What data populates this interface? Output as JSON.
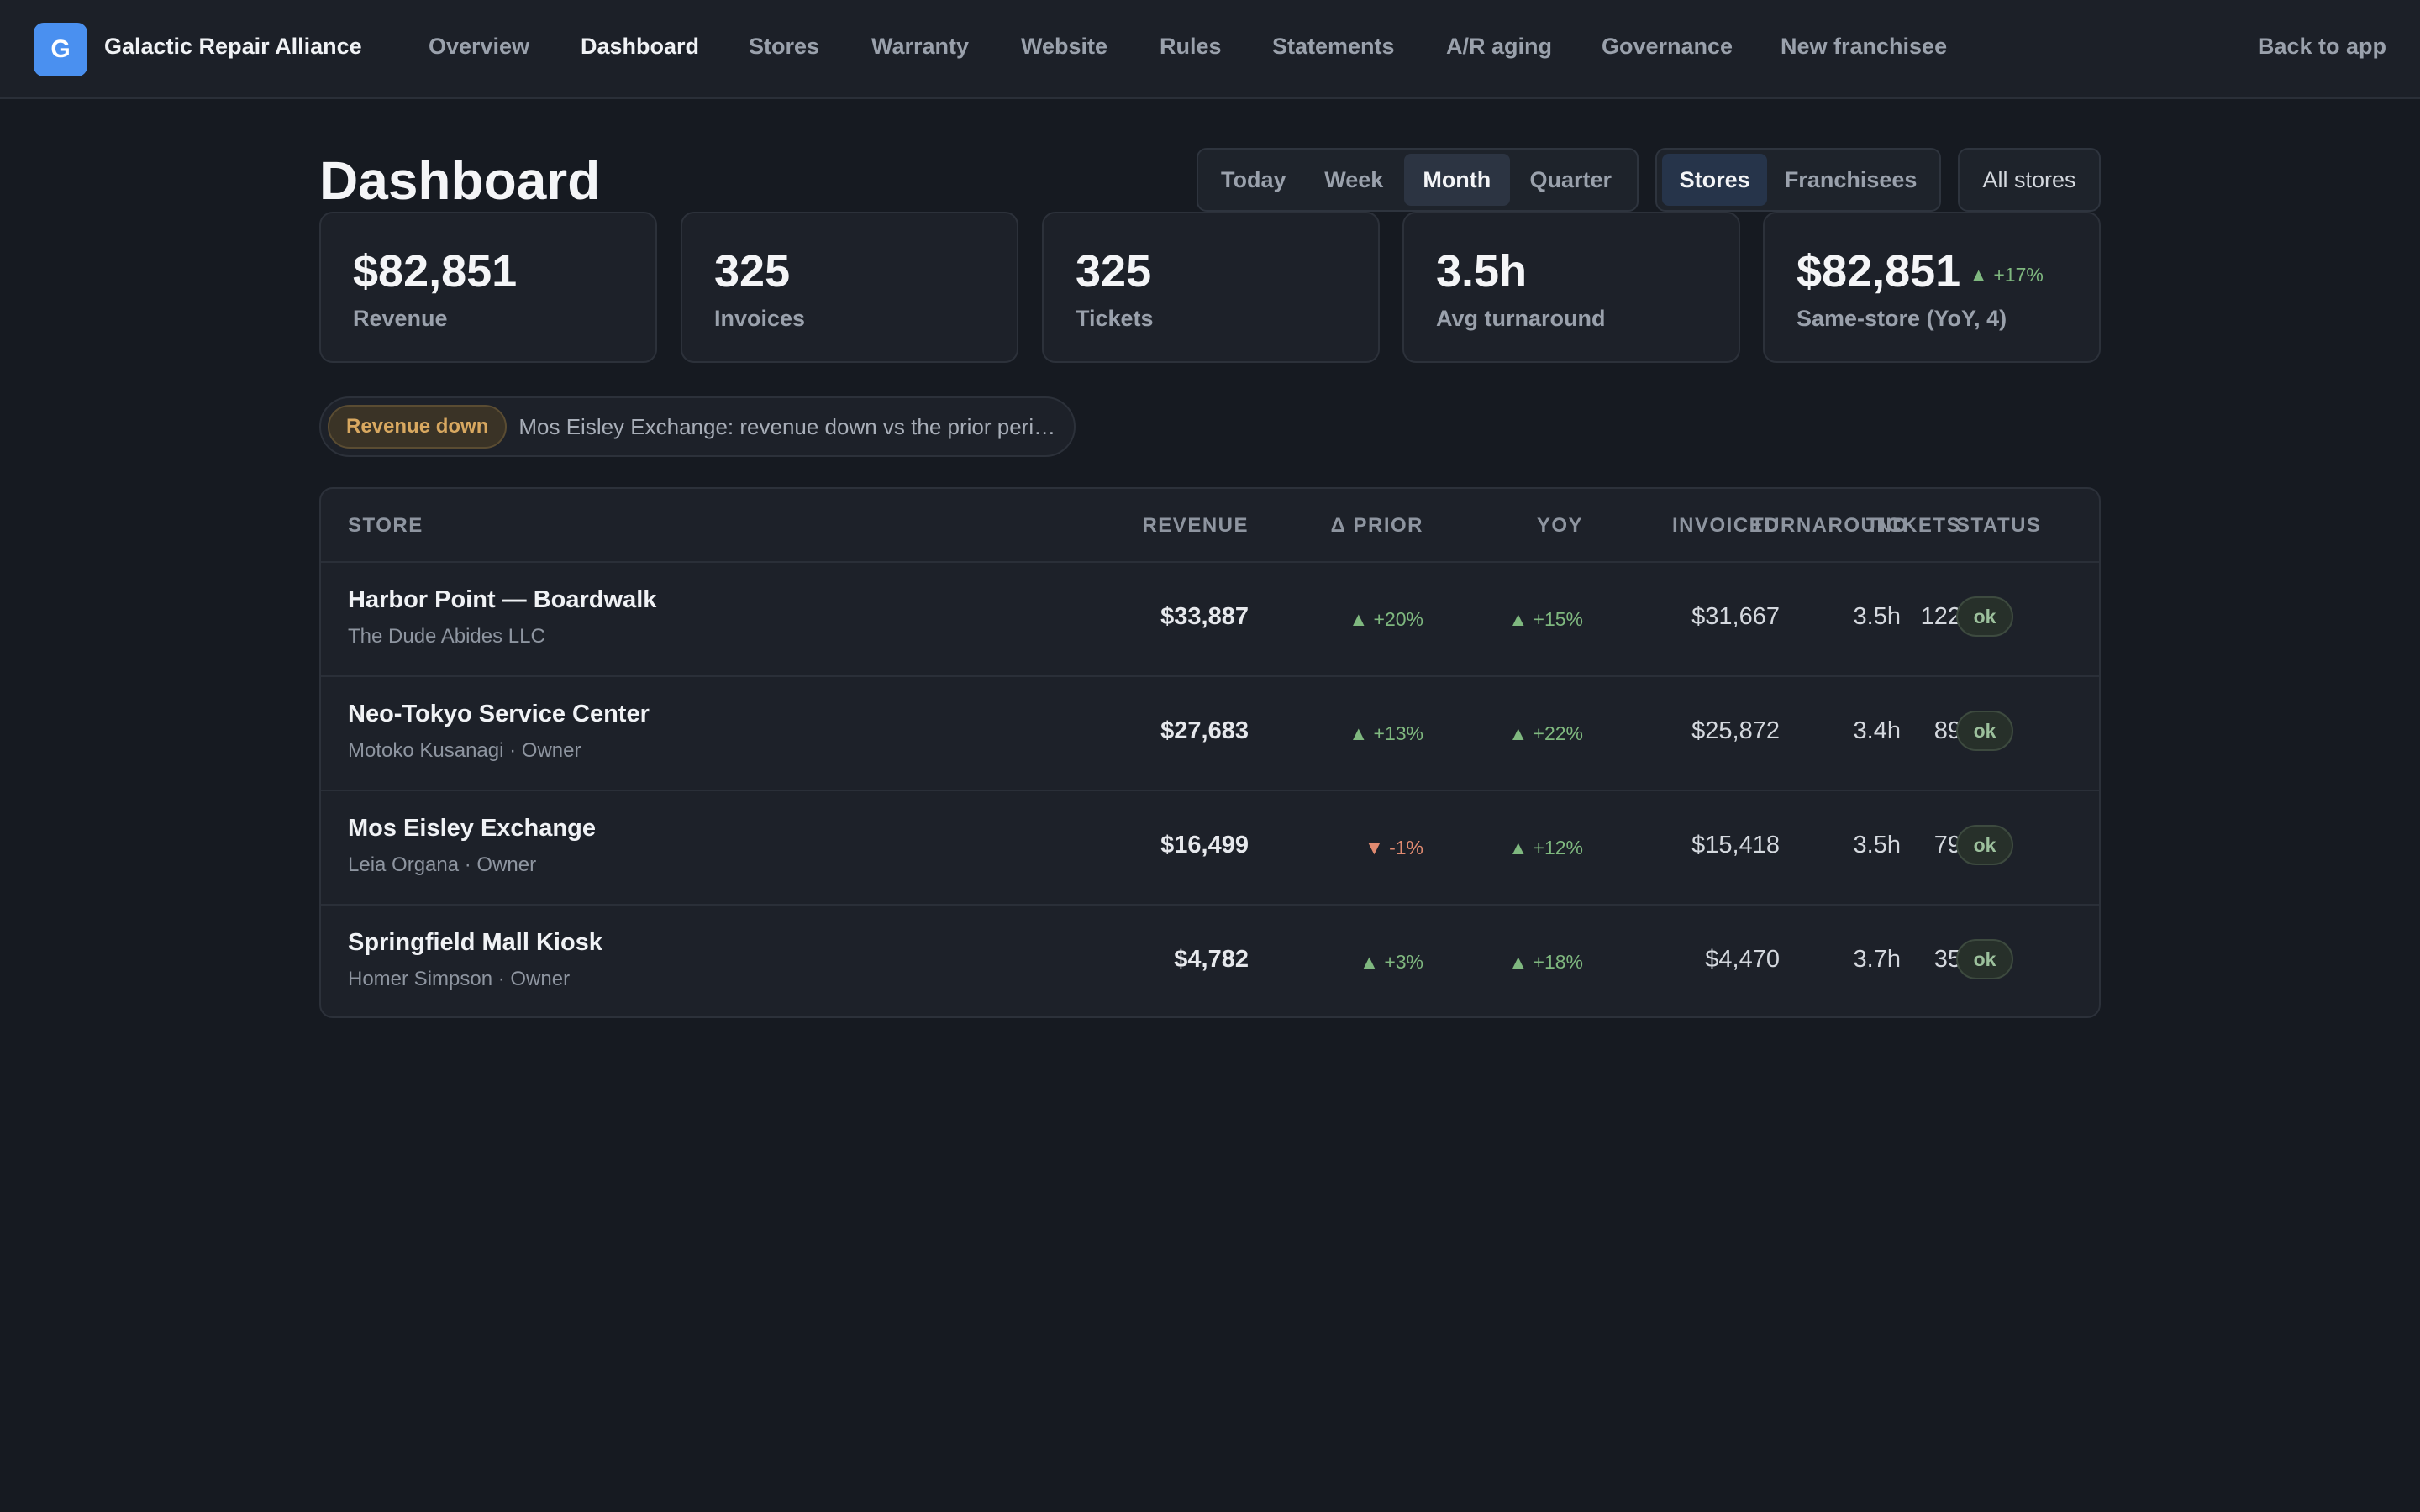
{
  "app": {
    "logo_letter": "G",
    "name": "Galactic Repair Alliance"
  },
  "nav": {
    "items": [
      "Overview",
      "Dashboard",
      "Stores",
      "Warranty",
      "Website",
      "Rules",
      "Statements",
      "A/R aging",
      "Governance",
      "New franchisee"
    ],
    "active": "Dashboard",
    "back_label": "Back to app"
  },
  "page": {
    "title": "Dashboard"
  },
  "period": {
    "options": [
      "Today",
      "Week",
      "Month",
      "Quarter"
    ],
    "selected": "Month"
  },
  "view": {
    "options": [
      "Stores",
      "Franchisees"
    ],
    "selected": "Stores"
  },
  "filter": {
    "stores_label": "All stores"
  },
  "kpis": [
    {
      "value": "$82,851",
      "label": "Revenue"
    },
    {
      "value": "325",
      "label": "Invoices"
    },
    {
      "value": "325",
      "label": "Tickets"
    },
    {
      "value": "3.5h",
      "label": "Avg turnaround"
    },
    {
      "value": "$82,851",
      "label": "Same-store (YoY, 4)",
      "delta": "▲ +17%"
    }
  ],
  "alert": {
    "badge": "Revenue down",
    "text": "Mos Eisley Exchange: revenue down vs the prior period"
  },
  "table": {
    "headers": [
      "STORE",
      "REVENUE",
      "Δ PRIOR",
      "YOY",
      "INVOICED",
      "TICKETS",
      "TURNAROUND",
      "STATUS"
    ],
    "rows": [
      {
        "store": "Harbor Point — Boardwalk",
        "owner": "The Dude Abides LLC",
        "revenue": "$33,887",
        "prior": "▲ +20%",
        "prior_dir": "up",
        "yoy": "▲ +15%",
        "yoy_dir": "up",
        "invoiced": "$31,667",
        "tickets": "122",
        "turnaround": "3.5h",
        "status": "ok"
      },
      {
        "store": "Neo-Tokyo Service Center",
        "owner": "Motoko Kusanagi · Owner",
        "revenue": "$27,683",
        "prior": "▲ +13%",
        "prior_dir": "up",
        "yoy": "▲ +22%",
        "yoy_dir": "up",
        "invoiced": "$25,872",
        "tickets": "89",
        "turnaround": "3.4h",
        "status": "ok"
      },
      {
        "store": "Mos Eisley Exchange",
        "owner": "Leia Organa · Owner",
        "revenue": "$16,499",
        "prior": "▼ -1%",
        "prior_dir": "down",
        "yoy": "▲ +12%",
        "yoy_dir": "up",
        "invoiced": "$15,418",
        "tickets": "79",
        "turnaround": "3.5h",
        "status": "ok"
      },
      {
        "store": "Springfield Mall Kiosk",
        "owner": "Homer Simpson · Owner",
        "revenue": "$4,782",
        "prior": "▲ +3%",
        "prior_dir": "up",
        "yoy": "▲ +18%",
        "yoy_dir": "up",
        "invoiced": "$4,470",
        "tickets": "35",
        "turnaround": "3.7h",
        "status": "ok"
      }
    ]
  }
}
